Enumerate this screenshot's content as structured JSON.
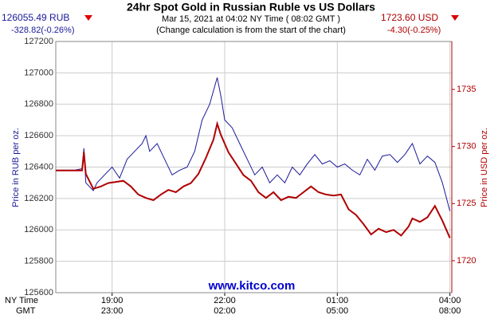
{
  "chart_data": {
    "type": "line",
    "title": "24hr Spot Gold in Russian Ruble vs US Dollars",
    "subtitle": "Mar 15, 2021 at 04:02 NY Time ( 08:02 GMT )",
    "note": "(Change calculation is from the start of the chart)",
    "left_price": "126055.49 RUB",
    "left_change": "-328.82(-0.26%)",
    "right_price": "1723.60 USD",
    "right_change": "-4.30(-0.25%)",
    "watermark": "www.kitco.com",
    "y_label": "Price in RUB per oz.",
    "y2_label": "Price in USD per oz.",
    "x_row1_label": "NY Time",
    "x_row2_label": "GMT",
    "xlim": [
      17.5,
      28.05
    ],
    "xticks": [
      {
        "value": 19,
        "label": "19:00"
      },
      {
        "value": 22,
        "label": "22:00"
      },
      {
        "value": 25,
        "label": "01:00"
      },
      {
        "value": 28,
        "label": "04:00"
      }
    ],
    "xticks_gmt": [
      "23:00",
      "02:00",
      "05:00",
      "08:00"
    ],
    "ylim": [
      125600,
      127200
    ],
    "yticks": [
      125600,
      125800,
      126000,
      126200,
      126400,
      126600,
      126800,
      127000,
      127200
    ],
    "y2lim": [
      1717.2,
      1739.2
    ],
    "y2ticks": [
      1720,
      1725,
      1730,
      1735
    ],
    "grid": true,
    "series": [
      {
        "name": "RUB",
        "color": "#1a1a99",
        "x": [
          17.5,
          17.8,
          18.0,
          18.2,
          18.25,
          18.3,
          18.5,
          18.6,
          18.8,
          19.0,
          19.2,
          19.4,
          19.6,
          19.8,
          19.9,
          20.0,
          20.2,
          20.4,
          20.6,
          20.8,
          21.0,
          21.2,
          21.4,
          21.6,
          21.8,
          21.9,
          22.0,
          22.2,
          22.4,
          22.6,
          22.8,
          23.0,
          23.2,
          23.4,
          23.6,
          23.8,
          24.0,
          24.2,
          24.4,
          24.6,
          24.8,
          25.0,
          25.2,
          25.4,
          25.6,
          25.8,
          26.0,
          26.2,
          26.4,
          26.6,
          26.8,
          27.0,
          27.2,
          27.4,
          27.6,
          27.8,
          28.0
        ],
        "values": [
          126380,
          126380,
          126380,
          126390,
          126520,
          126300,
          126250,
          126300,
          126350,
          126400,
          126330,
          126450,
          126500,
          126550,
          126600,
          126500,
          126550,
          126450,
          126350,
          126380,
          126400,
          126500,
          126700,
          126800,
          126970,
          126850,
          126700,
          126650,
          126550,
          126450,
          126350,
          126400,
          126300,
          126350,
          126300,
          126400,
          126350,
          126420,
          126480,
          126420,
          126440,
          126400,
          126420,
          126380,
          126350,
          126450,
          126380,
          126470,
          126480,
          126430,
          126480,
          126550,
          126420,
          126470,
          126430,
          126300,
          126120
        ]
      },
      {
        "name": "USD",
        "color": "#b00000",
        "axis": "y2",
        "x": [
          17.5,
          18.2,
          18.25,
          18.3,
          18.5,
          18.7,
          18.9,
          19.1,
          19.3,
          19.5,
          19.7,
          19.9,
          20.1,
          20.3,
          20.5,
          20.7,
          20.9,
          21.1,
          21.3,
          21.5,
          21.7,
          21.8,
          21.9,
          22.1,
          22.3,
          22.5,
          22.7,
          22.9,
          23.1,
          23.3,
          23.5,
          23.7,
          23.9,
          24.1,
          24.3,
          24.5,
          24.7,
          24.9,
          25.1,
          25.3,
          25.5,
          25.7,
          25.9,
          26.1,
          26.3,
          26.5,
          26.7,
          26.9,
          27.0,
          27.2,
          27.4,
          27.6,
          27.8,
          28.0
        ],
        "values": [
          1727.9,
          1727.9,
          1729.5,
          1727.6,
          1726.3,
          1726.5,
          1726.8,
          1726.9,
          1727.0,
          1726.5,
          1725.8,
          1725.5,
          1725.3,
          1725.8,
          1726.2,
          1726.0,
          1726.5,
          1726.8,
          1727.6,
          1729.0,
          1730.6,
          1732.0,
          1731.0,
          1729.5,
          1728.5,
          1727.5,
          1727.0,
          1726.0,
          1725.5,
          1726.0,
          1725.3,
          1725.6,
          1725.5,
          1726.0,
          1726.5,
          1726.0,
          1725.8,
          1725.7,
          1725.8,
          1724.5,
          1724.0,
          1723.2,
          1722.3,
          1722.8,
          1722.5,
          1722.7,
          1722.2,
          1723.0,
          1723.7,
          1723.4,
          1723.8,
          1724.8,
          1723.5,
          1722.0
        ]
      }
    ]
  }
}
